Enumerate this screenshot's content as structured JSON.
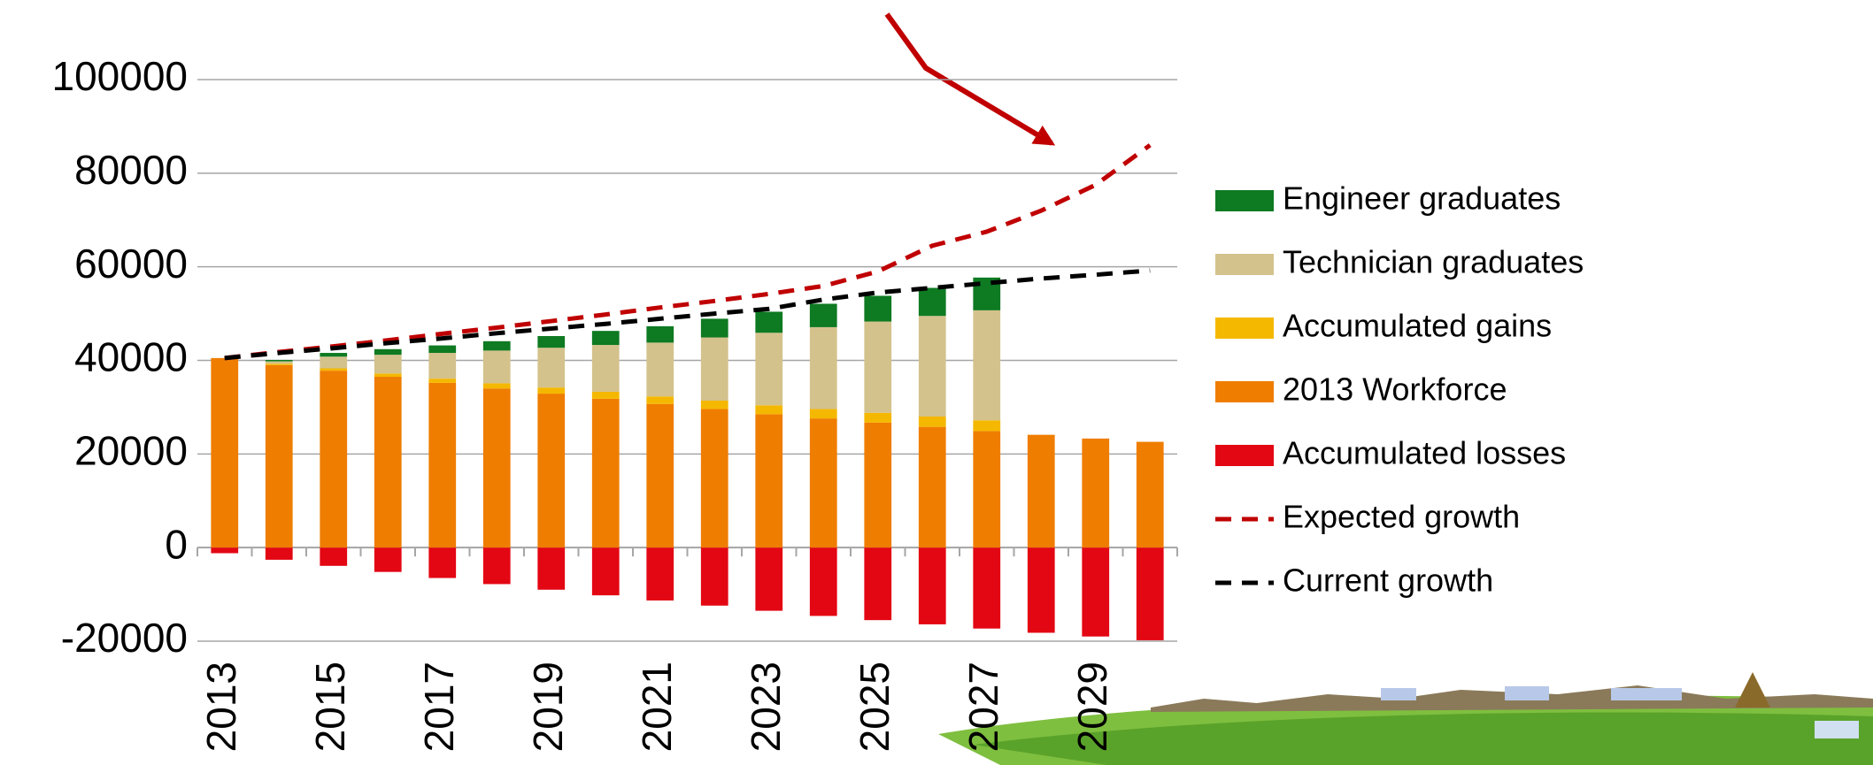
{
  "chart_data": {
    "type": "bar",
    "categories": [
      "2013",
      null,
      "2015",
      null,
      "2017",
      null,
      "2019",
      null,
      "2021",
      null,
      "2023",
      null,
      "2025",
      null,
      "2027",
      null,
      "2029",
      null
    ],
    "ylim": [
      -20000,
      100000
    ],
    "yticks": [
      -20000,
      0,
      20000,
      40000,
      60000,
      80000,
      100000
    ],
    "grid": true,
    "stacked": true,
    "legend": "right",
    "series": [
      {
        "name": "Engineer graduates",
        "type": "bar",
        "color": "#0e7a22",
        "values": [
          0,
          300,
          800,
          1200,
          1600,
          2000,
          2500,
          3000,
          3500,
          4000,
          4500,
          5000,
          5500,
          6000,
          7000,
          0,
          0,
          0
        ]
      },
      {
        "name": "Technician graduates",
        "type": "bar",
        "color": "#d4c28c",
        "values": [
          0,
          500,
          2500,
          4000,
          5500,
          7000,
          8500,
          10000,
          11500,
          13500,
          15500,
          17500,
          19500,
          21500,
          23500,
          0,
          0,
          0
        ]
      },
      {
        "name": "Accumulated gains",
        "type": "bar",
        "color": "#f5b800",
        "values": [
          0,
          300,
          500,
          700,
          900,
          1100,
          1300,
          1500,
          1600,
          1800,
          1900,
          2000,
          2100,
          2200,
          2300,
          0,
          0,
          0
        ]
      },
      {
        "name": "2013 Workforce",
        "type": "bar",
        "color": "#ef7d00",
        "values": [
          40500,
          39000,
          37800,
          36500,
          35200,
          34000,
          32900,
          31800,
          30700,
          29600,
          28500,
          27600,
          26700,
          25800,
          24900,
          24100,
          23300,
          22600
        ]
      },
      {
        "name": "Accumulated losses",
        "type": "bar",
        "color": "#e30613",
        "values": [
          -1200,
          -2600,
          -3900,
          -5200,
          -6500,
          -7800,
          -9000,
          -10200,
          -11300,
          -12400,
          -13500,
          -14600,
          -15500,
          -16400,
          -17300,
          -18200,
          -19000,
          -19800
        ]
      },
      {
        "name": "Expected growth",
        "type": "line",
        "color": "#c00000",
        "values": [
          40500,
          41800,
          43000,
          44300,
          45700,
          47000,
          48400,
          49800,
          51300,
          52700,
          54200,
          55900,
          59000,
          64500,
          67500,
          72000,
          77500,
          86000
        ]
      },
      {
        "name": "Current growth",
        "type": "line",
        "color": "#000000",
        "values": [
          40500,
          41600,
          42600,
          43700,
          44700,
          45800,
          46800,
          47800,
          48900,
          50000,
          51000,
          53000,
          54500,
          55500,
          56500,
          57500,
          58300,
          59200
        ]
      }
    ]
  }
}
